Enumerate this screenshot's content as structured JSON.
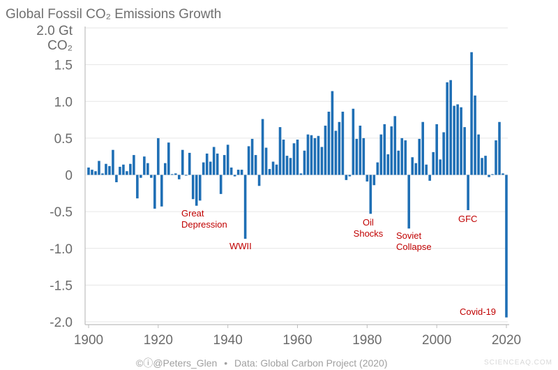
{
  "chart_data": {
    "type": "bar",
    "title": "Global Fossil CO₂ Emissions Growth",
    "ylabel_lines": [
      "2.0 Gt",
      "CO₂"
    ],
    "ylim": [
      -2.0,
      2.0
    ],
    "xlim": [
      1900,
      2020
    ],
    "y_ticks": [
      "1.5",
      "1.0",
      "0.5",
      "0",
      "-0.5",
      "-1.0",
      "-1.5",
      "-2.0"
    ],
    "y_tick_values": [
      1.5,
      1.0,
      0.5,
      0,
      -0.5,
      -1.0,
      -1.5,
      -2.0
    ],
    "x_ticks": [
      "1900",
      "1920",
      "1940",
      "1960",
      "1980",
      "2000",
      "2020"
    ],
    "grid": true,
    "bar_color": "#1f6fb5",
    "x": [
      1900,
      1901,
      1902,
      1903,
      1904,
      1905,
      1906,
      1907,
      1908,
      1909,
      1910,
      1911,
      1912,
      1913,
      1914,
      1915,
      1916,
      1917,
      1918,
      1919,
      1920,
      1921,
      1922,
      1923,
      1924,
      1925,
      1926,
      1927,
      1928,
      1929,
      1930,
      1931,
      1932,
      1933,
      1934,
      1935,
      1936,
      1937,
      1938,
      1939,
      1940,
      1941,
      1942,
      1943,
      1944,
      1945,
      1946,
      1947,
      1948,
      1949,
      1950,
      1951,
      1952,
      1953,
      1954,
      1955,
      1956,
      1957,
      1958,
      1959,
      1960,
      1961,
      1962,
      1963,
      1964,
      1965,
      1966,
      1967,
      1968,
      1969,
      1970,
      1971,
      1972,
      1973,
      1974,
      1975,
      1976,
      1977,
      1978,
      1979,
      1980,
      1981,
      1982,
      1983,
      1984,
      1985,
      1986,
      1987,
      1988,
      1989,
      1990,
      1991,
      1992,
      1993,
      1994,
      1995,
      1996,
      1997,
      1998,
      1999,
      2000,
      2001,
      2002,
      2003,
      2004,
      2005,
      2006,
      2007,
      2008,
      2009,
      2010,
      2011,
      2012,
      2013,
      2014,
      2015,
      2016,
      2017,
      2018,
      2019,
      2020
    ],
    "values": [
      0.1,
      0.07,
      0.05,
      0.19,
      0.02,
      0.15,
      0.12,
      0.34,
      -0.1,
      0.11,
      0.14,
      0.05,
      0.15,
      0.27,
      -0.32,
      -0.04,
      0.25,
      0.16,
      -0.04,
      -0.46,
      0.5,
      -0.43,
      0.16,
      0.44,
      0.01,
      0.02,
      -0.06,
      0.34,
      -0.01,
      0.3,
      -0.33,
      -0.42,
      -0.35,
      0.17,
      0.29,
      0.18,
      0.38,
      0.29,
      -0.26,
      0.27,
      0.41,
      0.1,
      -0.02,
      0.07,
      0.07,
      -0.87,
      0.39,
      0.49,
      0.27,
      -0.15,
      0.76,
      0.37,
      0.08,
      0.18,
      0.14,
      0.65,
      0.48,
      0.26,
      0.23,
      0.43,
      0.48,
      0.02,
      0.33,
      0.55,
      0.54,
      0.5,
      0.53,
      0.38,
      0.67,
      0.86,
      1.14,
      0.6,
      0.72,
      0.86,
      -0.07,
      -0.02,
      0.9,
      0.49,
      0.67,
      0.5,
      -0.09,
      -0.53,
      -0.14,
      0.17,
      0.55,
      0.69,
      0.28,
      0.66,
      0.8,
      0.33,
      0.5,
      0.47,
      -0.73,
      0.24,
      0.16,
      0.49,
      0.72,
      0.14,
      -0.08,
      0.31,
      0.69,
      0.21,
      0.58,
      1.26,
      1.29,
      0.94,
      0.96,
      0.92,
      0.65,
      -0.48,
      1.67,
      1.08,
      0.55,
      0.23,
      0.26,
      -0.03,
      0.01,
      0.47,
      0.72,
      0.02,
      -1.94
    ],
    "annotations": [
      {
        "lines": [
          "Great",
          "Depression"
        ],
        "year": 1931
      },
      {
        "lines": [
          "WWII"
        ],
        "year": 1945
      },
      {
        "lines": [
          "Oil",
          "Shocks"
        ],
        "year": 1981
      },
      {
        "lines": [
          "Soviet",
          "Collapse"
        ],
        "year": 1992
      },
      {
        "lines": [
          "GFC"
        ],
        "year": 2009
      },
      {
        "lines": [
          "Covid-19"
        ],
        "year": 2020
      }
    ],
    "annotation_color": "#c00000"
  },
  "footer": {
    "credit": "©ⓘ@Peters_Glen",
    "separator": "•",
    "source": "Data: Global Carbon Project (2020)"
  },
  "watermark": "SCIENCEAQ.COM"
}
